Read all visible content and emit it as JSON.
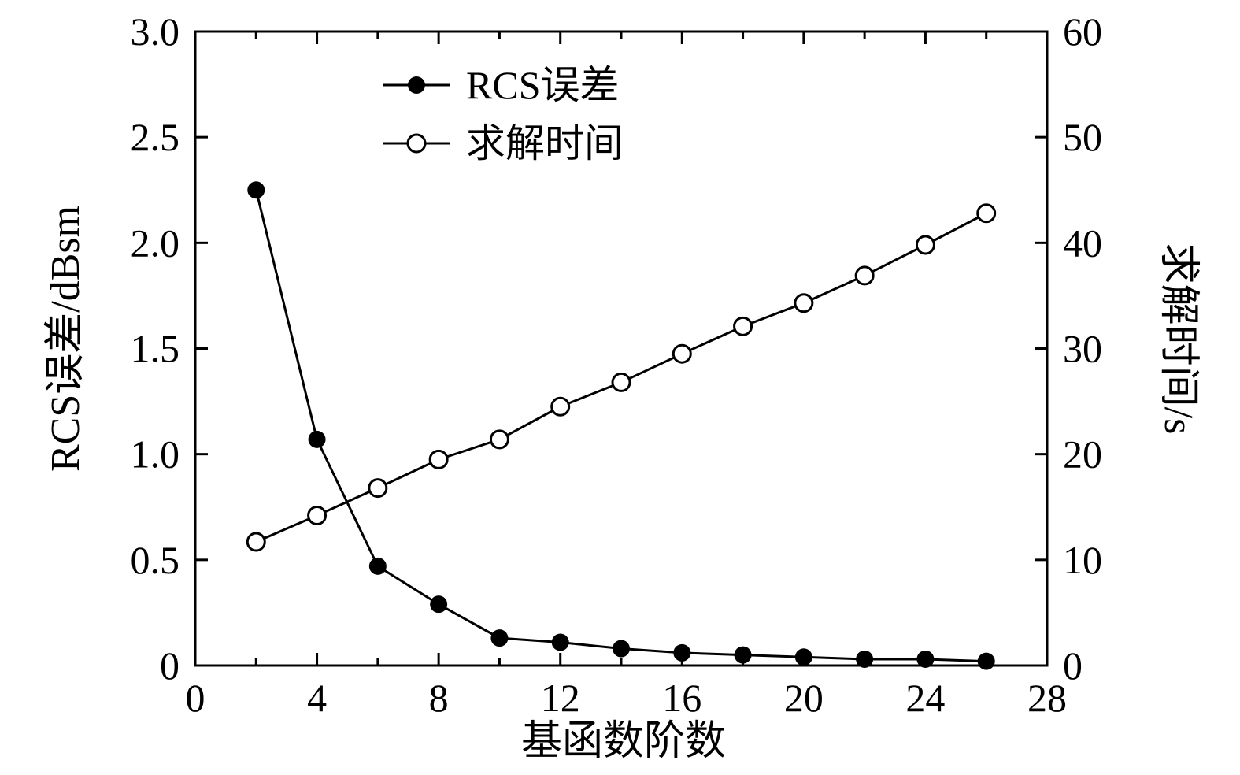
{
  "chart_data": {
    "type": "line",
    "title": "",
    "xlabel": "基函数阶数",
    "ylabel_left": "RCS误差/dBsm",
    "ylabel_right": "求解时间/s",
    "xlim": [
      0,
      28
    ],
    "x_ticks": [
      0,
      4,
      8,
      12,
      16,
      20,
      24,
      28
    ],
    "x_minor_step": 2,
    "ylim_left": [
      0,
      3
    ],
    "y_ticks_left_values": [
      0,
      0.5,
      1.0,
      1.5,
      2.0,
      2.5,
      3.0
    ],
    "y_ticks_left_labels": [
      "0",
      "0.5",
      "1.0",
      "1.5",
      "2.0",
      "2.5",
      "3.0"
    ],
    "ylim_right": [
      0,
      60
    ],
    "y_ticks_right_values": [
      0,
      10,
      20,
      30,
      40,
      50,
      60
    ],
    "y_ticks_right_labels": [
      "0",
      "10",
      "20",
      "30",
      "40",
      "50",
      "60"
    ],
    "x": [
      2,
      4,
      6,
      8,
      10,
      12,
      14,
      16,
      18,
      20,
      22,
      24,
      26
    ],
    "series": [
      {
        "name": "RCS误差",
        "axis": "left",
        "marker": "filled-circle",
        "color": "#000000",
        "values": [
          2.25,
          1.07,
          0.47,
          0.29,
          0.13,
          0.11,
          0.08,
          0.06,
          0.05,
          0.04,
          0.03,
          0.03,
          0.02
        ]
      },
      {
        "name": "求解时间",
        "axis": "right",
        "marker": "open-circle",
        "color": "#000000",
        "values": [
          11.7,
          14.2,
          16.8,
          19.5,
          21.4,
          24.5,
          26.8,
          29.5,
          32.1,
          34.3,
          36.9,
          39.8,
          42.8
        ]
      }
    ],
    "legend_position": "upper-left-inside",
    "grid": false,
    "colors": {
      "line": "#000000",
      "frame": "#000000",
      "background": "#ffffff",
      "open_marker_fill": "#ffffff"
    }
  }
}
